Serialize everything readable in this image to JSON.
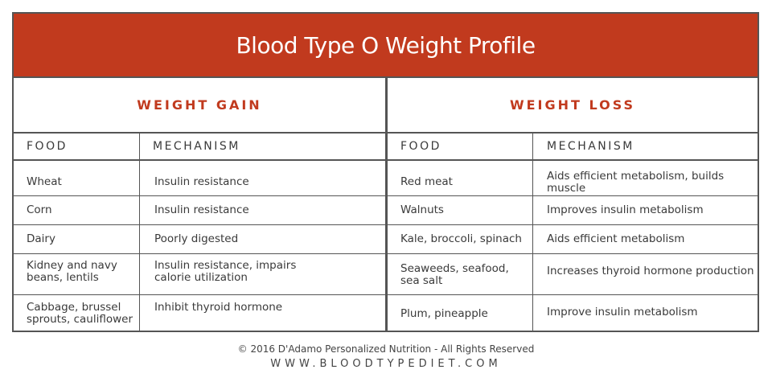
{
  "title": "Blood Type O Weight Profile",
  "sections": {
    "gain": {
      "heading": "WEIGHT GAIN",
      "food_header": "FOOD",
      "mechanism_header": "MECHANISM",
      "rows": [
        {
          "food": "Wheat",
          "mechanism": "Insulin resistance"
        },
        {
          "food": "Corn",
          "mechanism": "Insulin resistance"
        },
        {
          "food": "Dairy",
          "mechanism": "Poorly digested"
        },
        {
          "food": "Kidney and navy\nbeans, lentils",
          "mechanism": "Insulin resistance, impairs\ncalorie utilization"
        },
        {
          "food": "Cabbage, brussel\nsprouts, cauliflower",
          "mechanism": "Inhibit thyroid hormone"
        }
      ]
    },
    "loss": {
      "heading": "WEIGHT LOSS",
      "food_header": "FOOD",
      "mechanism_header": "MECHANISM",
      "rows": [
        {
          "food": "Red meat",
          "mechanism": "Aids efficient metabolism, builds muscle"
        },
        {
          "food": "Walnuts",
          "mechanism": "Improves insulin metabolism"
        },
        {
          "food": "Kale, broccoli, spinach",
          "mechanism": "Aids efficient metabolism"
        },
        {
          "food": "Seaweeds, seafood,\nsea salt",
          "mechanism": "Increases thyroid hormone production"
        },
        {
          "food": "Plum, pineapple",
          "mechanism": "Improve insulin metabolism"
        }
      ]
    }
  },
  "footer": {
    "copyright": "© 2016 D'Adamo Personalized Nutrition - All Rights Reserved",
    "url": "WWW.BLOODTYPEDIET.COM"
  },
  "colors": {
    "accent": "#c13a1e",
    "border": "#555555",
    "text": "#3a3a3a"
  }
}
